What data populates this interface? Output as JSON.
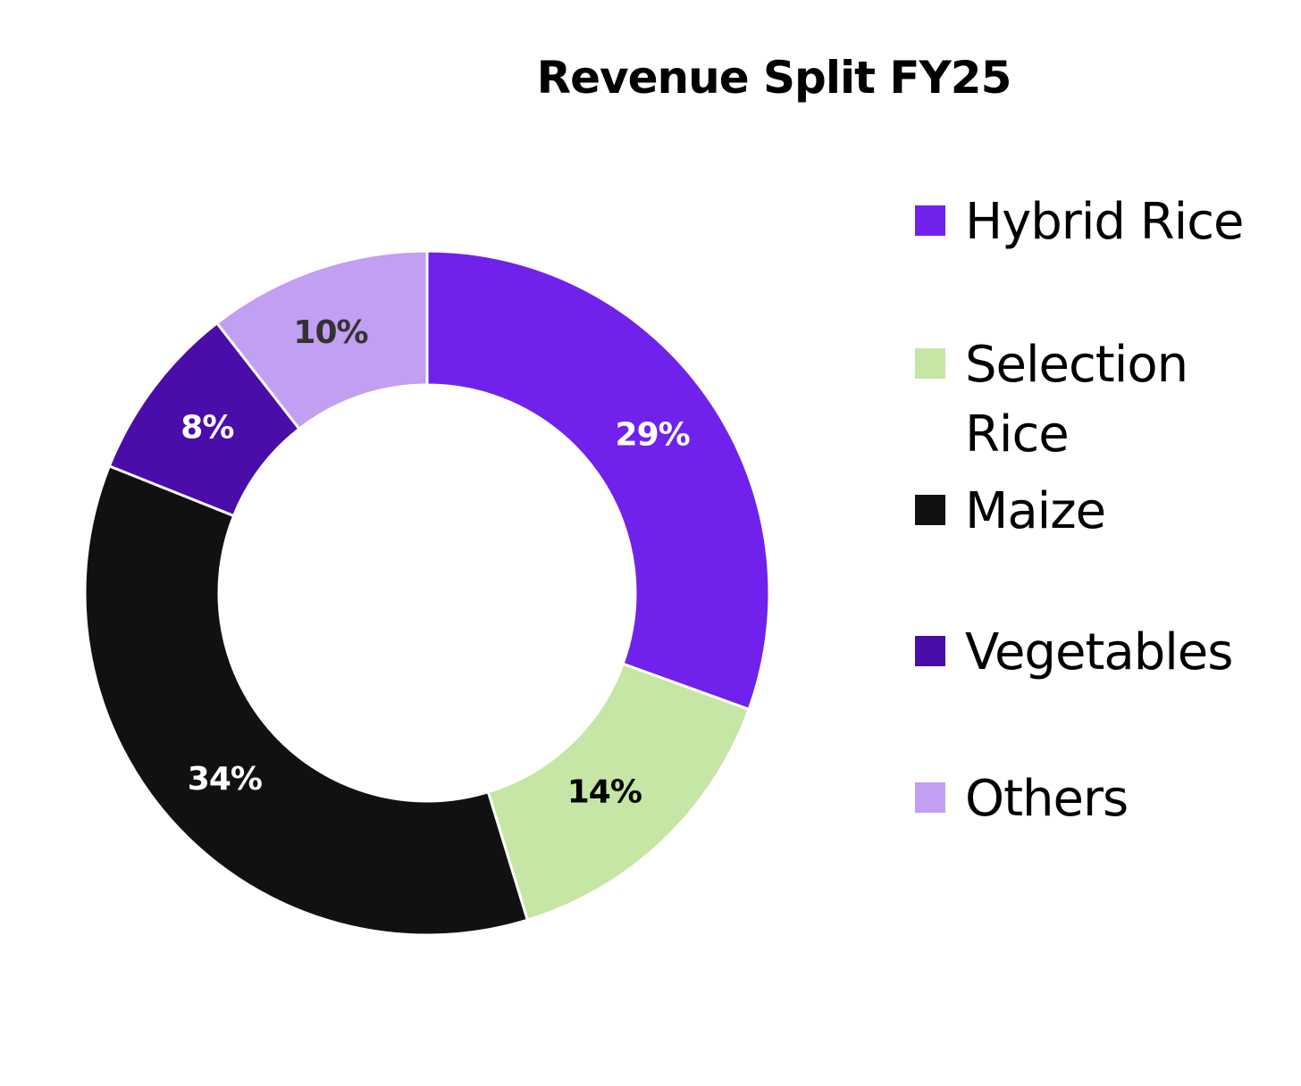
{
  "chart_data": {
    "type": "pie",
    "title": "Revenue Split FY25",
    "donut": true,
    "legend_position": "right",
    "categories": [
      "Hybrid Rice",
      "Selection Rice",
      "Maize",
      "Vegetables",
      "Others"
    ],
    "values": [
      29,
      14,
      34,
      8,
      10
    ],
    "labels": [
      "29%",
      "14%",
      "34%",
      "8%",
      "10%"
    ],
    "colors": [
      "#7022EC",
      "#C6E6A5",
      "#111111",
      "#4A0DA9",
      "#C19FF2"
    ],
    "label_colors": [
      "#FFFFFF",
      "#000000",
      "#FFFFFF",
      "#FFFFFF",
      "#333333"
    ]
  }
}
